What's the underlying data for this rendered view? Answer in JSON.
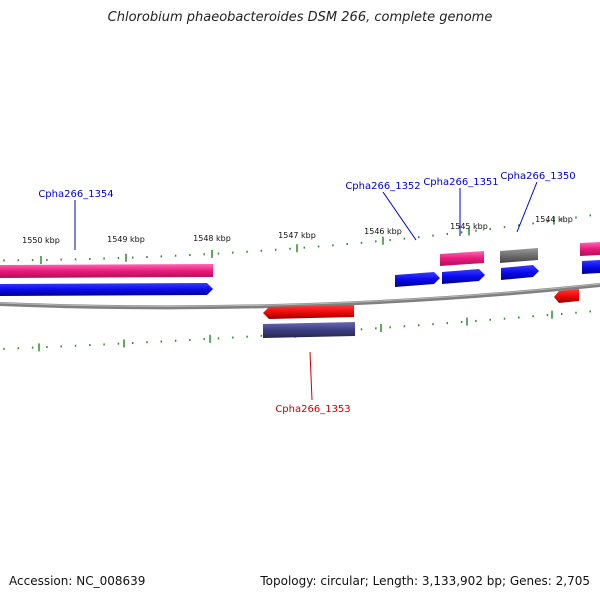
{
  "title": "Chlorobium phaeobacteroides DSM 266, complete genome",
  "footer": {
    "accession": "Accession: NC_008639",
    "summary": "Topology: circular; Length: 3,133,902 bp; Genes: 2,705"
  },
  "ticks": [
    {
      "label": "1550 kbp"
    },
    {
      "label": "1549 kbp"
    },
    {
      "label": "1548 kbp"
    },
    {
      "label": "1547 kbp"
    },
    {
      "label": "1546 kbp"
    },
    {
      "label": "1545 kbp"
    },
    {
      "label": "1544 kbp"
    }
  ],
  "gene_labels": [
    {
      "name": "Cpha266_1354",
      "color": "#0000cc"
    },
    {
      "name": "Cpha266_1352",
      "color": "#0000cc"
    },
    {
      "name": "Cpha266_1351",
      "color": "#0000cc"
    },
    {
      "name": "Cpha266_1350",
      "color": "#0000cc"
    },
    {
      "name": "Cpha266_1353",
      "color": "#cc0000"
    }
  ],
  "colors": {
    "backbone": "#808080",
    "ticks": "#2e8b2e",
    "gene_pink": "#e8197a",
    "gene_blue": "#0a0aee",
    "gene_red": "#ee0a0a",
    "gene_gray": "#6e6e6e",
    "gene_navy": "#3c3c82"
  }
}
